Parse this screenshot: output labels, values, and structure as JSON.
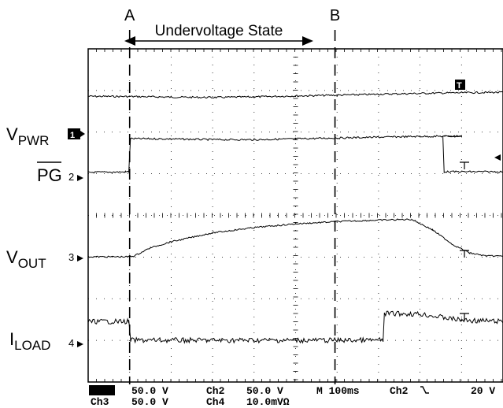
{
  "chart_data": {
    "type": "line",
    "title": "",
    "time_axis": {
      "div_ms": 100,
      "divisions": 10
    },
    "markers": [
      {
        "label": "A",
        "t_ms": 100
      },
      {
        "label": "B",
        "t_ms": 595
      }
    ],
    "annotation": "Undervoltage State",
    "trace_labels": {
      "vpwr": {
        "main": "V",
        "sub": "PWR"
      },
      "pg": {
        "main": "PG",
        "overline": true
      },
      "vout": {
        "main": "V",
        "sub": "OUT"
      },
      "iload": {
        "main": "I",
        "sub": "LOAD"
      }
    },
    "channel_markers": {
      "ch1": "1",
      "ch2": "2",
      "ch3": "3",
      "ch4": "4"
    },
    "series": [
      {
        "name": "V_PWR",
        "channel": "Ch1",
        "points": [
          [
            0,
            0.06
          ],
          [
            100,
            0.04
          ],
          [
            200,
            -0.02
          ],
          [
            300,
            -0.06
          ],
          [
            400,
            0.0
          ],
          [
            500,
            0.1
          ],
          [
            600,
            0.18
          ],
          [
            700,
            0.28
          ],
          [
            800,
            0.37
          ],
          [
            900,
            0.44
          ],
          [
            1000,
            0.48
          ]
        ]
      },
      {
        "name": "PG",
        "channel": "Ch2",
        "points": [
          [
            0,
            -0.06
          ],
          [
            90,
            -0.02
          ],
          [
            98,
            0.0
          ],
          [
            102,
            3.0
          ],
          [
            200,
            2.97
          ],
          [
            300,
            2.91
          ],
          [
            400,
            2.9
          ],
          [
            500,
            2.98
          ],
          [
            600,
            3.06
          ],
          [
            700,
            3.13
          ],
          [
            800,
            3.2
          ],
          [
            900,
            3.22
          ],
          [
            855,
            3.22
          ],
          [
            858,
            0.0
          ],
          [
            1000,
            0.0
          ]
        ]
      },
      {
        "name": "V_OUT",
        "channel": "Ch3",
        "points": [
          [
            0,
            0.0
          ],
          [
            100,
            0.0
          ],
          [
            110,
            0.04
          ],
          [
            150,
            0.6
          ],
          [
            200,
            1.0
          ],
          [
            300,
            1.6
          ],
          [
            400,
            1.95
          ],
          [
            500,
            2.2
          ],
          [
            600,
            2.35
          ],
          [
            700,
            2.45
          ],
          [
            780,
            2.5
          ],
          [
            830,
            1.8
          ],
          [
            880,
            0.8
          ],
          [
            920,
            0.25
          ],
          [
            960,
            0.05
          ],
          [
            1000,
            0.05
          ]
        ]
      },
      {
        "name": "I_LOAD",
        "channel": "Ch4",
        "points": [
          [
            0,
            0.7
          ],
          [
            98,
            0.7
          ],
          [
            102,
            0.0
          ],
          [
            300,
            0.0
          ],
          [
            500,
            0.0
          ],
          [
            711,
            0.0
          ],
          [
            714,
            1.0
          ],
          [
            800,
            0.98
          ],
          [
            900,
            0.75
          ],
          [
            1000,
            0.7
          ]
        ]
      }
    ],
    "readout": {
      "row1": [
        {
          "text": "Ch1",
          "inverse": true
        },
        {
          "text": "50.0 V"
        },
        {
          "text": "Ch2"
        },
        {
          "text": "50.0 V"
        },
        {
          "text": "M 100ms"
        },
        {
          "text": "Ch2"
        },
        {
          "text": "20 V"
        }
      ],
      "row2": [
        {
          "text": "Ch3"
        },
        {
          "text": "50.0 V"
        },
        {
          "text": "Ch4"
        },
        {
          "text": "10.0mVΩ"
        }
      ]
    },
    "trigger_marker": "T",
    "grid": true
  }
}
